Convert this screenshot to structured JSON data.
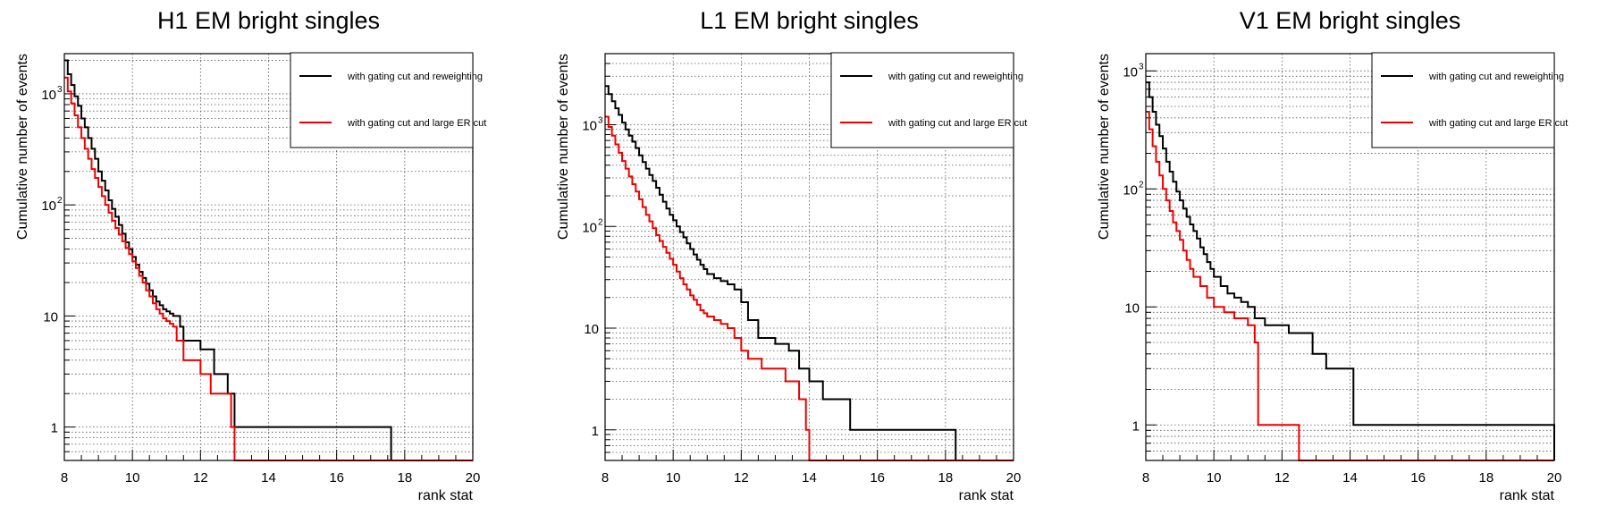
{
  "chart_data": [
    {
      "type": "line",
      "title": "H1 EM bright singles",
      "xlabel": "rank stat",
      "ylabel": "Cumulative number of events",
      "xlim": [
        8,
        20
      ],
      "ylim": [
        0.5,
        2300
      ],
      "y_scale": "log",
      "x_ticks": [
        "8",
        "10",
        "12",
        "14",
        "16",
        "18",
        "20"
      ],
      "y_ticks": [
        {
          "value": 1,
          "base": "1",
          "exp": ""
        },
        {
          "value": 10,
          "base": "10",
          "exp": ""
        },
        {
          "value": 100,
          "base": "10",
          "exp": "2"
        },
        {
          "value": 1000,
          "base": "10",
          "exp": "3"
        }
      ],
      "grid": true,
      "legend_position": "top-right",
      "series": [
        {
          "name": "with gating cut and reweighting",
          "color": "#000000",
          "x": [
            8.0,
            8.1,
            8.2,
            8.3,
            8.4,
            8.5,
            8.6,
            8.7,
            8.8,
            8.9,
            9.0,
            9.1,
            9.2,
            9.3,
            9.4,
            9.5,
            9.6,
            9.7,
            9.8,
            9.9,
            10.0,
            10.1,
            10.2,
            10.3,
            10.4,
            10.5,
            10.6,
            10.7,
            10.8,
            10.9,
            11.0,
            11.1,
            11.2,
            11.3,
            11.4,
            11.5,
            11.6,
            12.0,
            12.4,
            12.8,
            13.0,
            17.6,
            20.0
          ],
          "y": [
            2000,
            1500,
            1200,
            950,
            780,
            600,
            500,
            400,
            320,
            260,
            200,
            165,
            135,
            110,
            92,
            78,
            66,
            55,
            46,
            40,
            34,
            29,
            25,
            22,
            19.5,
            17,
            15,
            13.5,
            12.5,
            11.5,
            11,
            10.5,
            10,
            10,
            8,
            6,
            6,
            5,
            3,
            2,
            1,
            0.5,
            0.5
          ]
        },
        {
          "name": "with gating cut and large ER cut",
          "color": "#ee0000",
          "x": [
            8.0,
            8.1,
            8.2,
            8.3,
            8.4,
            8.5,
            8.6,
            8.7,
            8.8,
            8.9,
            9.0,
            9.1,
            9.2,
            9.3,
            9.4,
            9.5,
            9.6,
            9.7,
            9.8,
            9.9,
            10.0,
            10.1,
            10.2,
            10.3,
            10.4,
            10.5,
            10.6,
            10.7,
            10.8,
            10.9,
            11.0,
            11.1,
            11.2,
            11.3,
            11.5,
            12.0,
            12.3,
            12.9,
            13.0,
            20.0
          ],
          "y": [
            1400,
            1050,
            820,
            640,
            500,
            400,
            320,
            260,
            210,
            175,
            145,
            120,
            100,
            85,
            72,
            62,
            54,
            47,
            41,
            36,
            31,
            27,
            23,
            20,
            17,
            15,
            13,
            11.5,
            10.5,
            9.5,
            9,
            8.5,
            8,
            6,
            4,
            3,
            2,
            1,
            0.5,
            0.5
          ]
        }
      ]
    },
    {
      "type": "line",
      "title": "L1 EM bright singles",
      "xlabel": "rank stat",
      "ylabel": "Cumulative number of events",
      "xlim": [
        8,
        20
      ],
      "ylim": [
        0.5,
        5000
      ],
      "y_scale": "log",
      "x_ticks": [
        "8",
        "10",
        "12",
        "14",
        "16",
        "18",
        "20"
      ],
      "y_ticks": [
        {
          "value": 1,
          "base": "1",
          "exp": ""
        },
        {
          "value": 10,
          "base": "10",
          "exp": ""
        },
        {
          "value": 100,
          "base": "10",
          "exp": "2"
        },
        {
          "value": 1000,
          "base": "10",
          "exp": "3"
        }
      ],
      "grid": true,
      "legend_position": "top-right",
      "series": [
        {
          "name": "with gating cut and reweighting",
          "color": "#000000",
          "x": [
            8.0,
            8.1,
            8.2,
            8.3,
            8.4,
            8.5,
            8.6,
            8.7,
            8.8,
            8.9,
            9.0,
            9.1,
            9.2,
            9.3,
            9.4,
            9.5,
            9.6,
            9.7,
            9.8,
            9.9,
            10.0,
            10.1,
            10.2,
            10.3,
            10.4,
            10.5,
            10.6,
            10.7,
            10.8,
            10.9,
            11.0,
            11.2,
            11.4,
            11.6,
            11.8,
            12.0,
            12.2,
            12.5,
            13.0,
            13.4,
            13.7,
            14.0,
            14.4,
            15.2,
            18.3,
            20.0
          ],
          "y": [
            2400,
            2000,
            1700,
            1450,
            1250,
            1050,
            900,
            780,
            680,
            590,
            500,
            430,
            370,
            320,
            280,
            240,
            205,
            175,
            150,
            130,
            115,
            100,
            88,
            78,
            68,
            60,
            53,
            47,
            42,
            38,
            34,
            31,
            29,
            27,
            24,
            18,
            12,
            8,
            7,
            6,
            4,
            3,
            2,
            1,
            0.5,
            0.5
          ]
        },
        {
          "name": "with gating cut and large ER cut",
          "color": "#ee0000",
          "x": [
            8.0,
            8.1,
            8.2,
            8.3,
            8.4,
            8.5,
            8.6,
            8.7,
            8.8,
            8.9,
            9.0,
            9.1,
            9.2,
            9.3,
            9.4,
            9.5,
            9.6,
            9.7,
            9.8,
            9.9,
            10.0,
            10.1,
            10.2,
            10.3,
            10.4,
            10.5,
            10.6,
            10.7,
            10.8,
            10.9,
            11.0,
            11.2,
            11.4,
            11.6,
            11.8,
            12.0,
            12.2,
            12.6,
            13.3,
            13.7,
            13.9,
            14.0,
            20.0
          ],
          "y": [
            1200,
            950,
            780,
            640,
            530,
            440,
            370,
            310,
            260,
            220,
            185,
            155,
            130,
            112,
            96,
            82,
            72,
            63,
            55,
            48,
            42,
            36,
            31,
            27,
            24,
            21,
            19,
            17,
            15,
            14,
            13,
            12,
            11,
            10,
            8,
            6,
            5,
            4,
            3,
            2,
            1,
            0.5,
            0.5
          ]
        }
      ]
    },
    {
      "type": "line",
      "title": "V1 EM bright singles",
      "xlabel": "rank stat",
      "ylabel": "Cumulative number of events",
      "xlim": [
        8,
        20
      ],
      "ylim": [
        0.5,
        1400
      ],
      "y_scale": "log",
      "x_ticks": [
        "8",
        "10",
        "12",
        "14",
        "16",
        "18",
        "20"
      ],
      "y_ticks": [
        {
          "value": 1,
          "base": "1",
          "exp": ""
        },
        {
          "value": 10,
          "base": "10",
          "exp": ""
        },
        {
          "value": 100,
          "base": "10",
          "exp": "2"
        },
        {
          "value": 1000,
          "base": "10",
          "exp": "3"
        }
      ],
      "grid": true,
      "legend_position": "top-right",
      "series": [
        {
          "name": "with gating cut and reweighting",
          "color": "#000000",
          "x": [
            8.0,
            8.1,
            8.2,
            8.3,
            8.4,
            8.5,
            8.6,
            8.7,
            8.8,
            8.9,
            9.0,
            9.1,
            9.2,
            9.3,
            9.4,
            9.5,
            9.6,
            9.7,
            9.8,
            9.9,
            10.0,
            10.2,
            10.4,
            10.6,
            10.8,
            11.0,
            11.2,
            11.5,
            12.2,
            12.9,
            13.3,
            14.1,
            20.0
          ],
          "y": [
            800,
            600,
            450,
            350,
            280,
            220,
            170,
            140,
            115,
            95,
            80,
            68,
            58,
            50,
            44,
            38,
            32,
            28,
            24,
            21,
            18,
            15,
            13,
            12,
            11,
            10,
            8,
            7,
            6,
            4,
            3,
            1,
            0.5
          ]
        },
        {
          "name": "with gating cut and large ER cut",
          "color": "#ee0000",
          "x": [
            8.0,
            8.1,
            8.2,
            8.3,
            8.4,
            8.5,
            8.6,
            8.7,
            8.8,
            8.9,
            9.0,
            9.1,
            9.2,
            9.3,
            9.4,
            9.6,
            9.8,
            10.0,
            10.3,
            10.6,
            11.0,
            11.2,
            11.3,
            12.5,
            20.0
          ],
          "y": [
            450,
            320,
            230,
            170,
            130,
            100,
            80,
            65,
            52,
            44,
            37,
            30,
            25,
            21,
            18,
            15,
            12,
            10,
            9,
            8,
            7,
            5,
            1,
            0.5,
            0.5
          ]
        }
      ]
    }
  ]
}
